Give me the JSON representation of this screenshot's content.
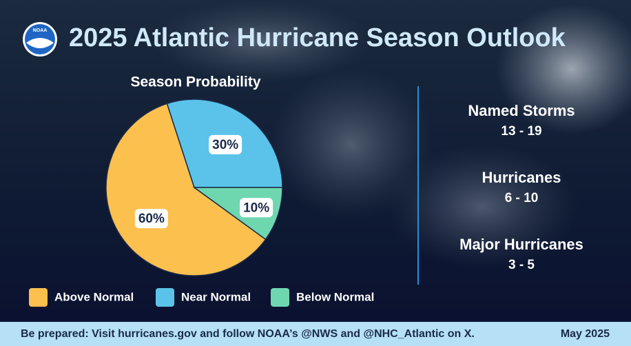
{
  "header": {
    "logo": "NOAA",
    "title": "2025 Atlantic Hurricane Season Outlook"
  },
  "chart_data": {
    "type": "pie",
    "title": "Season Probability",
    "categories": [
      "Above Normal",
      "Near Normal",
      "Below Normal"
    ],
    "values": [
      60,
      30,
      10
    ],
    "value_labels": [
      "60%",
      "30%",
      "10%"
    ],
    "colors": [
      "#fcc04e",
      "#5bc3ea",
      "#6fd7b0"
    ]
  },
  "stats": [
    {
      "label": "Named Storms",
      "value": "13 - 19"
    },
    {
      "label": "Hurricanes",
      "value": "6 - 10"
    },
    {
      "label": "Major Hurricanes",
      "value": "3 - 5"
    }
  ],
  "footer": {
    "message": "Be prepared: Visit hurricanes.gov and follow NOAA’s @NWS and @NHC_Atlantic on X.",
    "date": "May 2025"
  }
}
